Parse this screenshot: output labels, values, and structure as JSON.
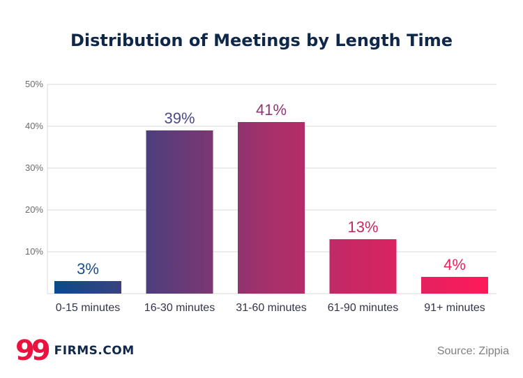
{
  "colors": {
    "title": "#0f2748",
    "gradient_start": "#0a4a8a",
    "gradient_mid": "#a7306a",
    "gradient_end": "#ff1a5a",
    "grid": "#d9d9d9"
  },
  "chart_data": {
    "type": "bar",
    "title": "Distribution of Meetings by Length Time",
    "xlabel": "",
    "ylabel": "",
    "categories": [
      "0-15 minutes",
      "16-30 minutes",
      "31-60 minutes",
      "61-90 minutes",
      "91+ minutes"
    ],
    "values": [
      3,
      39,
      41,
      13,
      4
    ],
    "value_labels": [
      "3%",
      "39%",
      "41%",
      "13%",
      "4%"
    ],
    "label_colors": [
      "#1b4f86",
      "#4a4a86",
      "#8e3670",
      "#c8295e",
      "#ee1e58"
    ],
    "ylim": [
      0,
      50
    ],
    "yticks": [
      10,
      20,
      30,
      40,
      50
    ],
    "ytick_labels": [
      "10%",
      "20%",
      "30%",
      "40%",
      "50%"
    ],
    "grid": true,
    "legend": "none"
  },
  "branding": {
    "logo_mark": "99",
    "logo_text": "FIRMS.COM",
    "source": "Source: Zippia"
  }
}
